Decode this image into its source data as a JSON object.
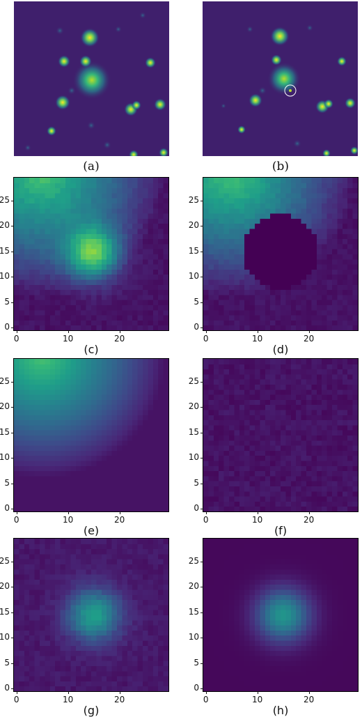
{
  "captions": {
    "a": "(a)",
    "b": "(b)",
    "c": "(c)",
    "d": "(d)",
    "e": "(e)",
    "f": "(f)",
    "g": "(g)",
    "h": "(h)"
  },
  "axes": {
    "yticks": [
      "0",
      "5",
      "10",
      "15",
      "20",
      "25"
    ],
    "xticks": [
      "0",
      "10",
      "20"
    ]
  },
  "colormap": [
    "#440154",
    "#482878",
    "#3e4989",
    "#31688e",
    "#26828e",
    "#1f9e89",
    "#35b779",
    "#6ece58",
    "#b5de2b",
    "#fde725"
  ],
  "marker_color": "#ffffff"
}
